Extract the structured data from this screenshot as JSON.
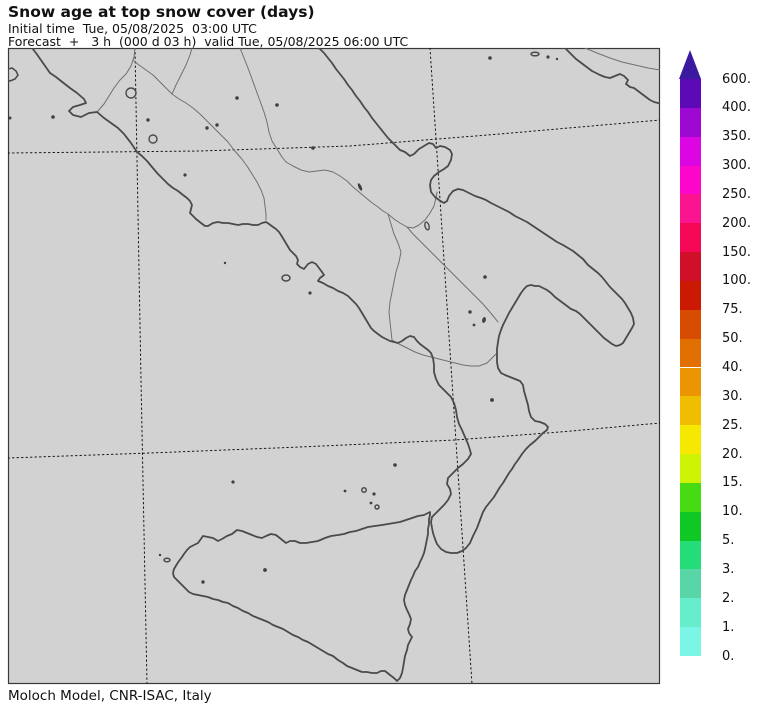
{
  "header": {
    "title": "Snow age at top snow cover (days)",
    "line1": "Initial time  Tue, 05/08/2025  03:00 UTC",
    "line2": "Forecast  +   3 h  (000 d 03 h)  valid Tue, 05/08/2025 06:00 UTC"
  },
  "footer": {
    "credit": "Moloch Model, CNR-ISAC, Italy"
  },
  "map": {
    "region": "Southern Italy and Sicily",
    "background_color": "#D2D2D2",
    "coastline_color": "#4A4A4A",
    "border_color": "#707070",
    "graticule_color": "#151515",
    "frame_color": "#3A3A3A"
  },
  "colorbar": {
    "unit": "days",
    "orientation": "vertical",
    "labels_top_to_bottom": [
      "600.",
      "400.",
      "350.",
      "300.",
      "250.",
      "200.",
      "150.",
      "100.",
      "75.",
      "50.",
      "40.",
      "30.",
      "25.",
      "20.",
      "15.",
      "10.",
      "5.",
      "3.",
      "2.",
      "1.",
      "0."
    ],
    "band_colors_top_to_bottom": [
      "#5C0AB5",
      "#9D08D3",
      "#DC06E3",
      "#FD06CB",
      "#FB1490",
      "#F50756",
      "#D00F28",
      "#CB1A01",
      "#D84C01",
      "#E16F01",
      "#EC9401",
      "#EFBE00",
      "#F7E801",
      "#CDF204",
      "#47DB14",
      "#0FC823",
      "#24DC78",
      "#58D6A8",
      "#66EDCB",
      "#7AF5E6"
    ],
    "arrow_color": "#3B1AA0"
  }
}
